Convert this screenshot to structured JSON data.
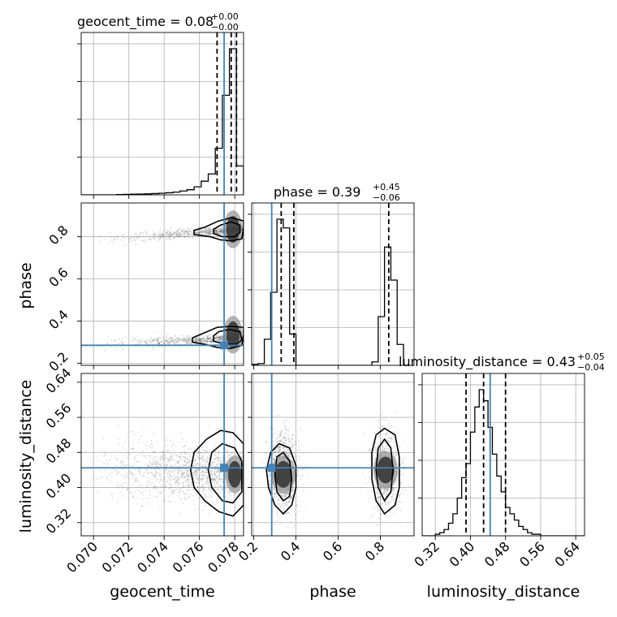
{
  "chart_data": {
    "type": "corner",
    "parameters": [
      {
        "name": "geocent_time",
        "range": [
          0.0693,
          0.0785
        ],
        "ticks": [
          "0.070",
          "0.072",
          "0.074",
          "0.076",
          "0.078"
        ],
        "tick_values": [
          0.07,
          0.072,
          0.074,
          0.076,
          0.078
        ],
        "title_prefix": "geocent_time = 0.08",
        "title_sup": "+0.00",
        "title_sub": "−0.00",
        "median": 0.0778,
        "quantiles": [
          0.077,
          0.0781
        ],
        "truth": 0.0774
      },
      {
        "name": "phase",
        "range": [
          0.19,
          0.96
        ],
        "ticks": [
          "0.2",
          "0.4",
          "0.6",
          "0.8"
        ],
        "tick_values": [
          0.2,
          0.4,
          0.6,
          0.8
        ],
        "title_prefix": "phase = 0.39",
        "title_sup": "+0.45",
        "title_sub": "−0.06",
        "median": 0.39,
        "quantiles": [
          0.33,
          0.84
        ],
        "truth": 0.285
      },
      {
        "name": "luminosity_distance",
        "range": [
          0.29,
          0.66
        ],
        "ticks": [
          "0.32",
          "0.40",
          "0.48",
          "0.56",
          "0.64"
        ],
        "tick_values": [
          0.32,
          0.4,
          0.48,
          0.56,
          0.64
        ],
        "title_prefix": "luminosity_distance = 0.43",
        "title_sup": "+0.05",
        "title_sub": "−0.04",
        "median": 0.43,
        "quantiles": [
          0.39,
          0.48
        ],
        "truth": 0.445
      }
    ],
    "histograms": {
      "geocent_time": {
        "edges": [
          0.0693,
          0.0697,
          0.0701,
          0.0705,
          0.0709,
          0.0713,
          0.0717,
          0.0721,
          0.0725,
          0.0729,
          0.0733,
          0.0737,
          0.0741,
          0.0745,
          0.0749,
          0.0753,
          0.0757,
          0.0761,
          0.0765,
          0.0769,
          0.0773,
          0.0777,
          0.0781,
          0.0785
        ],
        "counts": [
          0,
          0,
          0,
          0,
          0,
          0.2,
          0.3,
          0.4,
          0.5,
          0.6,
          0.8,
          1.0,
          1.3,
          1.7,
          2.4,
          3.2,
          5.0,
          8.5,
          13,
          29,
          62,
          91,
          18
        ]
      },
      "phase": {
        "edges": [
          0.19,
          0.22,
          0.25,
          0.28,
          0.31,
          0.34,
          0.37,
          0.4,
          0.43,
          0.46,
          0.49,
          0.52,
          0.55,
          0.58,
          0.61,
          0.64,
          0.67,
          0.7,
          0.73,
          0.76,
          0.79,
          0.82,
          0.85,
          0.88,
          0.91,
          0.94
        ],
        "counts": [
          0.5,
          1,
          15,
          42,
          84,
          79,
          18,
          0,
          0,
          0,
          0,
          0,
          0,
          0,
          0,
          0,
          0,
          0,
          0,
          2,
          28,
          68,
          49,
          12,
          0
        ]
      },
      "luminosity_distance": {
        "edges": [
          0.29,
          0.3,
          0.31,
          0.32,
          0.33,
          0.34,
          0.35,
          0.36,
          0.37,
          0.38,
          0.39,
          0.4,
          0.41,
          0.42,
          0.43,
          0.44,
          0.45,
          0.46,
          0.47,
          0.48,
          0.49,
          0.5,
          0.51,
          0.52,
          0.53,
          0.54,
          0.55,
          0.56,
          0.57,
          0.58,
          0.59,
          0.6,
          0.61,
          0.62,
          0.63,
          0.64,
          0.65,
          0.66
        ],
        "counts": [
          0,
          0,
          0,
          1,
          2,
          4,
          8,
          14,
          24,
          37,
          46,
          66,
          82,
          93,
          86,
          69,
          52,
          38,
          28,
          18,
          14,
          10,
          6,
          4,
          2,
          1,
          1,
          0,
          0,
          0,
          0,
          0,
          0,
          0,
          0,
          0,
          0
        ]
      }
    },
    "contours": {
      "phase_vs_geocent_time": [
        [
          [
            0.0757,
            0.81
          ],
          [
            0.0766,
            0.8
          ],
          [
            0.0772,
            0.785
          ],
          [
            0.0778,
            0.78
          ],
          [
            0.0784,
            0.79
          ],
          [
            0.0785,
            0.84
          ],
          [
            0.0785,
            0.875
          ],
          [
            0.0778,
            0.89
          ],
          [
            0.0771,
            0.875
          ],
          [
            0.0763,
            0.845
          ],
          [
            0.0757,
            0.83
          ],
          [
            0.0757,
            0.81
          ]
        ],
        [
          [
            0.0768,
            0.815
          ],
          [
            0.0773,
            0.8
          ],
          [
            0.078,
            0.8
          ],
          [
            0.0783,
            0.82
          ],
          [
            0.0783,
            0.855
          ],
          [
            0.0778,
            0.87
          ],
          [
            0.0772,
            0.855
          ],
          [
            0.0768,
            0.835
          ],
          [
            0.0768,
            0.815
          ]
        ],
        [
          [
            0.0756,
            0.3
          ],
          [
            0.0763,
            0.29
          ],
          [
            0.077,
            0.275
          ],
          [
            0.0778,
            0.27
          ],
          [
            0.0784,
            0.285
          ],
          [
            0.0785,
            0.33
          ],
          [
            0.0785,
            0.37
          ],
          [
            0.0778,
            0.375
          ],
          [
            0.077,
            0.37
          ],
          [
            0.0763,
            0.345
          ],
          [
            0.0756,
            0.32
          ],
          [
            0.0756,
            0.3
          ]
        ],
        [
          [
            0.0768,
            0.305
          ],
          [
            0.0774,
            0.29
          ],
          [
            0.0781,
            0.29
          ],
          [
            0.0784,
            0.31
          ],
          [
            0.0783,
            0.35
          ],
          [
            0.0777,
            0.36
          ],
          [
            0.0771,
            0.35
          ],
          [
            0.0768,
            0.33
          ],
          [
            0.0768,
            0.305
          ]
        ]
      ],
      "luminosity_distance_vs_geocent_time": [
        [
          [
            0.0771,
            0.345
          ],
          [
            0.0763,
            0.37
          ],
          [
            0.0757,
            0.4
          ],
          [
            0.0755,
            0.44
          ],
          [
            0.0757,
            0.48
          ],
          [
            0.0764,
            0.51
          ],
          [
            0.0772,
            0.53
          ],
          [
            0.0779,
            0.525
          ],
          [
            0.0785,
            0.5
          ],
          [
            0.0785,
            0.36
          ],
          [
            0.0779,
            0.335
          ],
          [
            0.0771,
            0.345
          ]
        ],
        [
          [
            0.0773,
            0.37
          ],
          [
            0.0767,
            0.4
          ],
          [
            0.0765,
            0.44
          ],
          [
            0.0767,
            0.48
          ],
          [
            0.0773,
            0.5
          ],
          [
            0.078,
            0.49
          ],
          [
            0.0784,
            0.46
          ],
          [
            0.0784,
            0.39
          ],
          [
            0.0779,
            0.365
          ],
          [
            0.0773,
            0.37
          ]
        ]
      ],
      "luminosity_distance_vs_phase": [
        [
          [
            0.34,
            0.34
          ],
          [
            0.3,
            0.36
          ],
          [
            0.27,
            0.4
          ],
          [
            0.26,
            0.44
          ],
          [
            0.28,
            0.48
          ],
          [
            0.32,
            0.5
          ],
          [
            0.37,
            0.49
          ],
          [
            0.4,
            0.45
          ],
          [
            0.4,
            0.4
          ],
          [
            0.38,
            0.36
          ],
          [
            0.34,
            0.34
          ]
        ],
        [
          [
            0.34,
            0.37
          ],
          [
            0.31,
            0.39
          ],
          [
            0.3,
            0.43
          ],
          [
            0.31,
            0.47
          ],
          [
            0.34,
            0.48
          ],
          [
            0.37,
            0.46
          ],
          [
            0.38,
            0.42
          ],
          [
            0.37,
            0.38
          ],
          [
            0.34,
            0.37
          ]
        ],
        [
          [
            0.82,
            0.34
          ],
          [
            0.78,
            0.37
          ],
          [
            0.76,
            0.42
          ],
          [
            0.76,
            0.48
          ],
          [
            0.78,
            0.52
          ],
          [
            0.82,
            0.535
          ],
          [
            0.87,
            0.52
          ],
          [
            0.89,
            0.47
          ],
          [
            0.89,
            0.4
          ],
          [
            0.87,
            0.36
          ],
          [
            0.82,
            0.34
          ]
        ],
        [
          [
            0.82,
            0.37
          ],
          [
            0.79,
            0.4
          ],
          [
            0.78,
            0.44
          ],
          [
            0.79,
            0.49
          ],
          [
            0.82,
            0.51
          ],
          [
            0.85,
            0.49
          ],
          [
            0.86,
            0.44
          ],
          [
            0.85,
            0.39
          ],
          [
            0.82,
            0.37
          ]
        ]
      ]
    },
    "grid": true
  }
}
